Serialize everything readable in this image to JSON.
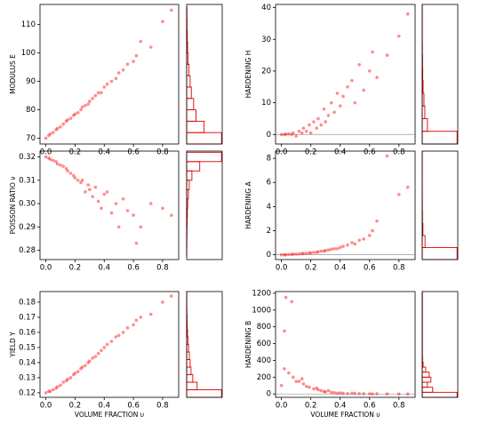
{
  "chart_data": [
    {
      "type": "scatter",
      "ylabel": "MODULUS E",
      "color": "#ff0000",
      "hist_color": "#e00000",
      "x": [
        0.0,
        0.02,
        0.03,
        0.05,
        0.07,
        0.08,
        0.1,
        0.12,
        0.14,
        0.15,
        0.17,
        0.19,
        0.2,
        0.22,
        0.24,
        0.25,
        0.27,
        0.29,
        0.3,
        0.32,
        0.34,
        0.36,
        0.38,
        0.4,
        0.42,
        0.45,
        0.48,
        0.5,
        0.53,
        0.56,
        0.6,
        0.62,
        0.65,
        0.72,
        0.8,
        0.86
      ],
      "y": [
        70,
        71,
        71.5,
        72,
        73,
        73.5,
        74,
        75,
        76,
        76.5,
        77,
        78,
        78.5,
        79,
        80,
        81,
        81.5,
        82,
        83,
        84,
        85,
        86,
        86,
        88,
        89,
        90,
        91,
        93,
        94,
        96,
        97,
        99,
        104,
        102,
        111,
        115
      ],
      "xlim": [
        -0.04,
        0.91
      ],
      "ylim": [
        68,
        117
      ],
      "xticks": [
        {
          "value": 0,
          "label": "0.0"
        },
        0.2,
        0.4,
        0.6,
        0.8
      ],
      "yticks": [
        70,
        80,
        90,
        100,
        110
      ],
      "histogram": {
        "bins": [
          68,
          72,
          76,
          80,
          84,
          88,
          92,
          96,
          100,
          104,
          108,
          112,
          116
        ],
        "counts": [
          300,
          150,
          80,
          60,
          40,
          30,
          20,
          12,
          8,
          5,
          3,
          2
        ]
      }
    },
    {
      "type": "scatter",
      "ylabel": "HARDENING H",
      "color": "#ff0000",
      "hist_color": "#e00000",
      "reference_line": 0,
      "x": [
        0.0,
        0.02,
        0.03,
        0.05,
        0.07,
        0.08,
        0.1,
        0.12,
        0.14,
        0.15,
        0.17,
        0.19,
        0.2,
        0.22,
        0.24,
        0.25,
        0.27,
        0.29,
        0.3,
        0.32,
        0.34,
        0.36,
        0.38,
        0.4,
        0.42,
        0.45,
        0.48,
        0.5,
        0.53,
        0.56,
        0.6,
        0.62,
        0.65,
        0.72,
        0.8,
        0.86
      ],
      "y": [
        0,
        0,
        0.1,
        0.2,
        0,
        0.5,
        -0.5,
        1,
        0.5,
        2,
        1,
        3,
        0.5,
        4,
        2,
        5,
        3,
        8,
        4,
        6,
        10,
        7,
        13,
        9,
        12,
        15,
        17,
        10,
        22,
        14,
        20,
        26,
        18,
        25,
        31,
        38
      ],
      "xlim": [
        -0.04,
        0.91
      ],
      "ylim": [
        -3,
        41
      ],
      "xticks": [
        {
          "value": 0,
          "label": "0.0"
        },
        0.2,
        0.4,
        0.6,
        0.8
      ],
      "yticks": [
        0,
        10,
        20,
        30,
        40
      ],
      "histogram": {
        "bins": [
          -3,
          1,
          5,
          9,
          13,
          17,
          21,
          25,
          29,
          33,
          37,
          41
        ],
        "counts": [
          400,
          60,
          30,
          20,
          10,
          6,
          4,
          2,
          1,
          1,
          1
        ]
      }
    },
    {
      "type": "scatter",
      "ylabel": "POISSON RATIO ν",
      "color": "#ff0000",
      "hist_color": "#e00000",
      "x": [
        0.0,
        0.02,
        0.03,
        0.05,
        0.07,
        0.08,
        0.1,
        0.12,
        0.14,
        0.15,
        0.17,
        0.19,
        0.2,
        0.22,
        0.24,
        0.25,
        0.27,
        0.29,
        0.3,
        0.32,
        0.34,
        0.36,
        0.38,
        0.4,
        0.42,
        0.45,
        0.48,
        0.5,
        0.53,
        0.56,
        0.6,
        0.62,
        0.65,
        0.72,
        0.8,
        0.86
      ],
      "y": [
        0.32,
        0.3195,
        0.319,
        0.3185,
        0.318,
        0.317,
        0.3165,
        0.316,
        0.315,
        0.314,
        0.313,
        0.312,
        0.311,
        0.31,
        0.309,
        0.31,
        0.305,
        0.308,
        0.306,
        0.303,
        0.307,
        0.301,
        0.298,
        0.304,
        0.305,
        0.296,
        0.3,
        0.29,
        0.302,
        0.297,
        0.295,
        0.283,
        0.29,
        0.3,
        0.298,
        0.295
      ],
      "xlim": [
        -0.04,
        0.91
      ],
      "ylim": [
        0.276,
        0.3225
      ],
      "xticks": [
        {
          "value": 0,
          "label": "0.0"
        },
        0.2,
        0.4,
        0.6,
        0.8
      ],
      "yticks": [
        0.28,
        0.29,
        {
          "value": 0.3,
          "label": "0.30"
        },
        0.31,
        0.32
      ],
      "histogram": {
        "bins": [
          0.278,
          0.282,
          0.286,
          0.29,
          0.294,
          0.298,
          0.302,
          0.306,
          0.31,
          0.314,
          0.318,
          0.322
        ],
        "counts": [
          1,
          2,
          3,
          5,
          8,
          12,
          20,
          30,
          60,
          150,
          400
        ]
      }
    },
    {
      "type": "scatter",
      "ylabel": "HARDENING A",
      "color": "#ff0000",
      "hist_color": "#e00000",
      "reference_line": 0,
      "x": [
        0.0,
        0.02,
        0.03,
        0.05,
        0.07,
        0.08,
        0.1,
        0.12,
        0.14,
        0.15,
        0.17,
        0.19,
        0.2,
        0.22,
        0.24,
        0.25,
        0.27,
        0.29,
        0.3,
        0.32,
        0.34,
        0.36,
        0.38,
        0.4,
        0.42,
        0.45,
        0.48,
        0.5,
        0.53,
        0.56,
        0.6,
        0.62,
        0.65,
        0.72,
        0.8,
        0.86
      ],
      "y": [
        0,
        0,
        0,
        0.02,
        0.03,
        0.05,
        0.05,
        0.07,
        0.1,
        0.1,
        0.12,
        0.15,
        0.15,
        0.2,
        0.2,
        0.25,
        0.3,
        0.3,
        0.35,
        0.4,
        0.45,
        0.5,
        0.5,
        0.6,
        0.7,
        0.8,
        1.0,
        0.9,
        1.2,
        1.3,
        1.6,
        2.0,
        2.8,
        8.2,
        5.0,
        5.6
      ],
      "xlim": [
        -0.04,
        0.91
      ],
      "ylim": [
        -0.4,
        8.6
      ],
      "xticks": [
        {
          "value": 0,
          "label": "0.0"
        },
        0.2,
        0.4,
        0.6,
        0.8
      ],
      "yticks": [
        0,
        2,
        4,
        6,
        8
      ],
      "histogram": {
        "bins": [
          -0.4,
          0.6,
          1.6,
          2.6,
          3.6,
          4.6,
          5.6,
          6.6,
          7.6,
          8.6
        ],
        "counts": [
          500,
          40,
          10,
          4,
          2,
          1,
          1,
          1,
          1
        ]
      }
    },
    {
      "type": "scatter",
      "ylabel": "YIELD Y",
      "xlabel": "VOLUME FRACTION υ",
      "color": "#ff0000",
      "hist_color": "#e00000",
      "x": [
        0.0,
        0.02,
        0.03,
        0.05,
        0.07,
        0.08,
        0.1,
        0.12,
        0.14,
        0.15,
        0.17,
        0.19,
        0.2,
        0.22,
        0.24,
        0.25,
        0.27,
        0.29,
        0.3,
        0.32,
        0.34,
        0.36,
        0.38,
        0.4,
        0.42,
        0.45,
        0.48,
        0.5,
        0.53,
        0.56,
        0.6,
        0.62,
        0.65,
        0.72,
        0.8,
        0.86
      ],
      "y": [
        0.12,
        0.121,
        0.121,
        0.122,
        0.123,
        0.124,
        0.125,
        0.127,
        0.128,
        0.129,
        0.13,
        0.132,
        0.133,
        0.134,
        0.136,
        0.137,
        0.138,
        0.14,
        0.141,
        0.143,
        0.144,
        0.146,
        0.148,
        0.15,
        0.152,
        0.154,
        0.157,
        0.158,
        0.16,
        0.163,
        0.165,
        0.168,
        0.17,
        0.172,
        0.18,
        0.184
      ],
      "xlim": [
        -0.04,
        0.91
      ],
      "ylim": [
        0.117,
        0.187
      ],
      "xticks": [
        {
          "value": 0,
          "label": "0.0"
        },
        0.2,
        0.4,
        0.6,
        0.8
      ],
      "yticks": [
        0.12,
        0.13,
        0.14,
        0.15,
        0.16,
        0.17,
        0.18
      ],
      "histogram": {
        "bins": [
          0.117,
          0.122,
          0.127,
          0.132,
          0.137,
          0.142,
          0.147,
          0.152,
          0.157,
          0.162,
          0.167,
          0.172,
          0.177,
          0.182,
          0.187
        ],
        "counts": [
          400,
          120,
          70,
          50,
          40,
          30,
          22,
          16,
          10,
          6,
          4,
          2,
          1,
          1
        ]
      }
    },
    {
      "type": "scatter",
      "ylabel": "HARDENING B",
      "xlabel": "VOLUME FRACTION υ",
      "color": "#ff0000",
      "hist_color": "#e00000",
      "reference_line": 0,
      "x": [
        0.0,
        0.02,
        0.03,
        0.05,
        0.02,
        0.08,
        0.07,
        0.12,
        0.14,
        0.15,
        0.17,
        0.19,
        0.1,
        0.22,
        0.24,
        0.25,
        0.27,
        0.29,
        0.3,
        0.32,
        0.34,
        0.36,
        0.38,
        0.4,
        0.42,
        0.45,
        0.48,
        0.5,
        0.53,
        0.56,
        0.6,
        0.62,
        0.65,
        0.72,
        0.8,
        0.86
      ],
      "y": [
        100,
        300,
        1150,
        250,
        750,
        200,
        1100,
        150,
        180,
        120,
        90,
        80,
        150,
        60,
        70,
        50,
        40,
        30,
        25,
        40,
        20,
        15,
        10,
        12,
        8,
        5,
        10,
        6,
        4,
        3,
        2,
        1,
        2,
        1,
        0,
        0
      ],
      "xlim": [
        -0.04,
        0.91
      ],
      "ylim": [
        -40,
        1220
      ],
      "xticks": [
        {
          "value": 0,
          "label": "0.0"
        },
        0.2,
        0.4,
        0.6,
        0.8
      ],
      "yticks": [
        0,
        200,
        400,
        600,
        800,
        1000,
        1200
      ],
      "histogram": {
        "bins": [
          -40,
          20,
          80,
          140,
          200,
          260,
          320,
          380,
          440,
          1220
        ],
        "counts": [
          200,
          60,
          30,
          50,
          40,
          20,
          5,
          2,
          1
        ]
      }
    }
  ]
}
